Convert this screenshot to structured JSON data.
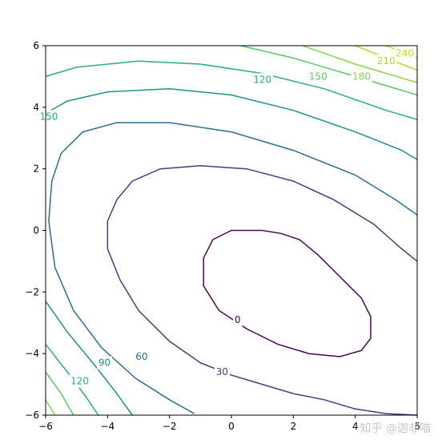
{
  "chart_data": {
    "type": "contour",
    "xlabel": "",
    "ylabel": "",
    "xlim": [
      -6,
      6
    ],
    "ylim": [
      -6,
      6
    ],
    "grid": false,
    "x_ticks": [
      -6,
      -4,
      -2,
      0,
      2,
      4,
      6
    ],
    "y_ticks": [
      -6,
      -4,
      -2,
      0,
      2,
      4,
      6
    ],
    "x_tick_labels": [
      "−6",
      "−4",
      "−2",
      "0",
      "2",
      "4",
      "6"
    ],
    "y_tick_labels": [
      "−6",
      "−4",
      "−2",
      "0",
      "2",
      "4",
      "6"
    ],
    "levels": [
      {
        "value": 0,
        "label": "0",
        "color": "#46075a",
        "points": [
          [
            1.0,
            0.0
          ],
          [
            1.6,
            -0.1
          ],
          [
            2.2,
            -0.3
          ],
          [
            2.8,
            -0.8
          ],
          [
            3.3,
            -1.3
          ],
          [
            3.8,
            -1.8
          ],
          [
            4.2,
            -2.2
          ],
          [
            4.5,
            -2.8
          ],
          [
            4.5,
            -3.5
          ],
          [
            4.2,
            -3.9
          ],
          [
            3.5,
            -4.1
          ],
          [
            2.5,
            -4.0
          ],
          [
            1.5,
            -3.7
          ],
          [
            0.5,
            -3.2
          ],
          [
            -0.4,
            -2.6
          ],
          [
            -0.9,
            -1.8
          ],
          [
            -0.9,
            -0.9
          ],
          [
            -0.6,
            -0.3
          ],
          [
            0.0,
            0.0
          ],
          [
            1.0,
            0.0
          ]
        ],
        "label_at": [
          0.2,
          -2.9
        ]
      },
      {
        "value": 30,
        "label": "30",
        "color": "#433e85",
        "points": [
          [
            -4.0,
            0.3
          ],
          [
            -3.7,
            1.0
          ],
          [
            -3.2,
            1.6
          ],
          [
            -2.3,
            2.0
          ],
          [
            -1.0,
            2.1
          ],
          [
            0.5,
            2.0
          ],
          [
            2.0,
            1.6
          ],
          [
            3.3,
            1.0
          ],
          [
            4.6,
            0.2
          ],
          [
            5.5,
            -0.6
          ],
          [
            6.0,
            -1.0
          ]
        ],
        "points2": [
          [
            -4.0,
            0.3
          ],
          [
            -4.0,
            -0.6
          ],
          [
            -3.6,
            -1.6
          ],
          [
            -3.0,
            -2.6
          ],
          [
            -2.0,
            -3.6
          ],
          [
            -1.0,
            -4.3
          ],
          [
            0.0,
            -4.7
          ],
          [
            1.0,
            -5.0
          ],
          [
            2.0,
            -5.3
          ],
          [
            3.0,
            -5.5
          ],
          [
            4.0,
            -5.8
          ],
          [
            5.0,
            -5.95
          ],
          [
            6.0,
            -6.0
          ]
        ],
        "label_at": [
          -0.3,
          -4.6
        ]
      },
      {
        "value": 60,
        "label": "60",
        "color": "#2c6e8e",
        "points": [
          [
            -5.9,
            0.3
          ],
          [
            -5.8,
            1.6
          ],
          [
            -5.5,
            2.5
          ],
          [
            -4.8,
            3.2
          ],
          [
            -3.7,
            3.5
          ],
          [
            -2.0,
            3.5
          ],
          [
            0.0,
            3.2
          ],
          [
            2.0,
            2.6
          ],
          [
            4.0,
            1.8
          ],
          [
            5.3,
            1.0
          ],
          [
            6.0,
            0.5
          ]
        ],
        "points2": [
          [
            -5.9,
            0.3
          ],
          [
            -5.7,
            -1.2
          ],
          [
            -5.1,
            -2.6
          ],
          [
            -4.2,
            -3.8
          ],
          [
            -3.1,
            -4.8
          ],
          [
            -2.0,
            -5.5
          ],
          [
            -1.2,
            -5.95
          ]
        ],
        "label_at": [
          -2.9,
          -4.1
        ]
      },
      {
        "value": 90,
        "label": "90",
        "color": "#21908d",
        "points": [
          [
            -6.0,
            3.8
          ],
          [
            -5.3,
            4.2
          ],
          [
            -4.0,
            4.5
          ],
          [
            -2.0,
            4.6
          ],
          [
            0.0,
            4.4
          ],
          [
            2.0,
            3.9
          ],
          [
            4.0,
            3.2
          ],
          [
            5.5,
            2.6
          ],
          [
            6.0,
            2.3
          ]
        ],
        "points2": [
          [
            -6.0,
            -2.3
          ],
          [
            -5.3,
            -3.3
          ],
          [
            -4.4,
            -4.4
          ],
          [
            -3.7,
            -5.3
          ],
          [
            -3.2,
            -6.0
          ]
        ],
        "label_at": [
          -4.1,
          -4.3
        ]
      },
      {
        "value": 120,
        "label": "120",
        "color": "#27ad81",
        "points": [
          [
            -6.0,
            5.0
          ],
          [
            -5.0,
            5.3
          ],
          [
            -3.0,
            5.5
          ],
          [
            -1.0,
            5.4
          ],
          [
            1.0,
            5.1
          ],
          [
            3.0,
            4.6
          ],
          [
            5.0,
            3.9
          ],
          [
            6.0,
            3.6
          ]
        ],
        "points2": [
          [
            -6.0,
            -3.7
          ],
          [
            -5.3,
            -4.6
          ],
          [
            -4.7,
            -5.4
          ],
          [
            -4.3,
            -6.0
          ]
        ],
        "label_at": [
          -4.9,
          -4.9
        ]
      },
      {
        "value": 150,
        "label": "150",
        "color": "#5cc863",
        "points": [
          [
            0.3,
            6.0
          ],
          [
            2.0,
            5.6
          ],
          [
            4.0,
            5.0
          ],
          [
            6.0,
            4.4
          ]
        ],
        "points2": [
          [
            -6.0,
            -4.6
          ],
          [
            -5.5,
            -5.3
          ],
          [
            -5.1,
            -6.0
          ]
        ],
        "label_at": [
          2.8,
          5.0
        ]
      },
      {
        "value": 180,
        "label": "180",
        "color": "#8bd646",
        "points": [
          [
            2.3,
            6.0
          ],
          [
            4.0,
            5.4
          ],
          [
            6.0,
            4.8
          ]
        ],
        "points2": [
          [
            -6.0,
            -5.5
          ],
          [
            -5.7,
            -6.0
          ]
        ],
        "label_at": [
          4.2,
          5.0
        ]
      },
      {
        "value": 210,
        "label": "210",
        "color": "#aadc32",
        "points": [
          [
            4.0,
            6.0
          ],
          [
            5.0,
            5.6
          ],
          [
            6.0,
            5.2
          ]
        ],
        "label_at": [
          5.0,
          5.5
        ]
      },
      {
        "value": 240,
        "label": "240",
        "color": "#c8e020",
        "points": [
          [
            5.0,
            6.0
          ],
          [
            6.0,
            5.6
          ]
        ],
        "label_at": [
          5.6,
          5.75
        ]
      }
    ],
    "extra_labels": [
      {
        "text": "120",
        "at": [
          1.0,
          4.9
        ],
        "color": "#27ad81"
      },
      {
        "text": "150",
        "at": [
          -5.9,
          3.7
        ],
        "color": "#27ad81"
      }
    ]
  },
  "watermark": "知乎 @迦非喵"
}
